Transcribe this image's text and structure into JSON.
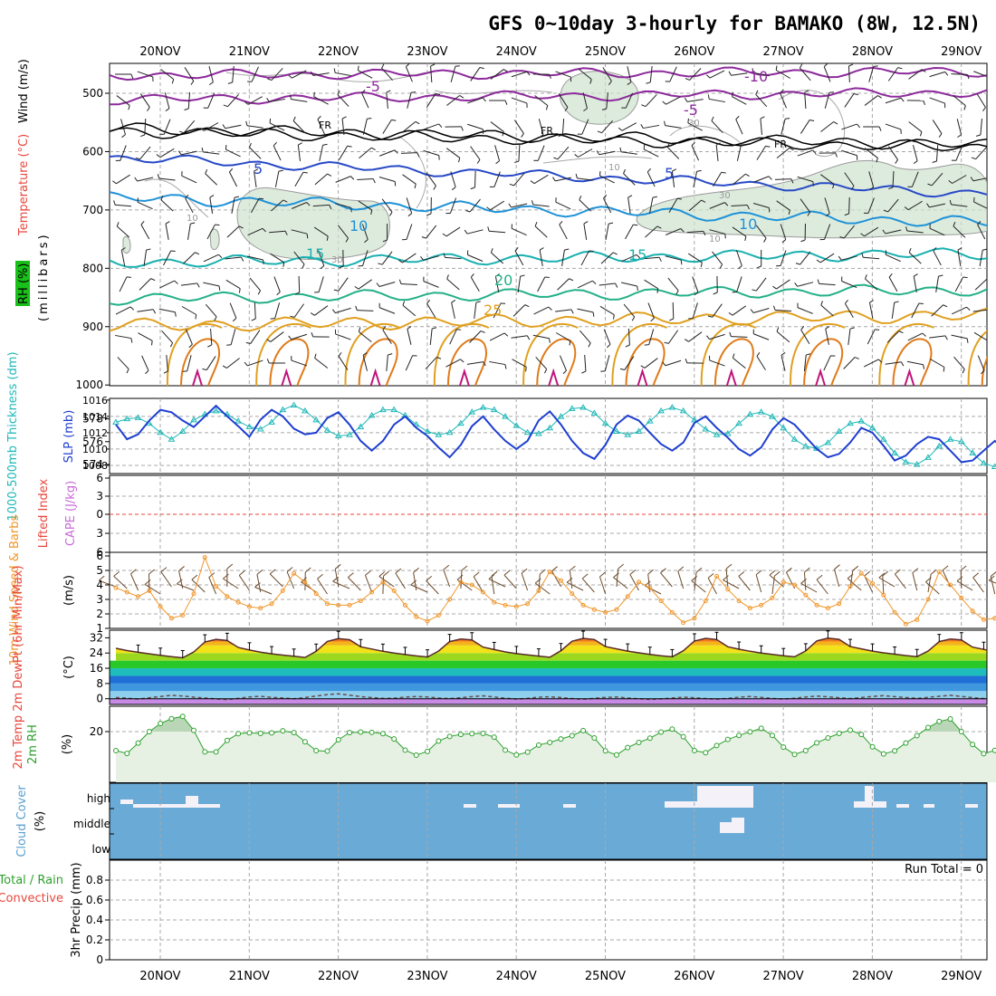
{
  "title": "GFS 0~10day 3-hourly for BAMAKO (8W, 12.5N)",
  "dates": [
    "20NOV",
    "21NOV",
    "22NOV",
    "23NOV",
    "24NOV",
    "25NOV",
    "26NOV",
    "27NOV",
    "28NOV",
    "29NOV"
  ],
  "colors": {
    "temp_axis": "#e8463c",
    "wind_axis": "#000000",
    "rh": "#19a319",
    "thick": "#20b8b8",
    "slp": "#1f3fd0",
    "cape": "#c86bd8",
    "lifted": "#e8463c",
    "wind10": "#f0962a",
    "rh2m": "#2ca02c",
    "cloud": "#6aaad6",
    "precip_total": "#2ca02c",
    "precip_conv": "#e8463c"
  },
  "panels": {
    "upper": {
      "ylabel_rh": "RH (%)",
      "ylabel_temp": "Temperature (°C)",
      "ylabel_wind": "Wind (m/s)",
      "ylabel_mb": "(millibars)",
      "yticks": [
        "500",
        "600",
        "700",
        "800",
        "900",
        "1000"
      ],
      "labels": {
        "fr": "FR",
        "m10": "-10",
        "m5": "-5",
        "p5": "5",
        "p10": "10",
        "p15": "15",
        "p20": "20",
        "p25": "25",
        "rh30": "30",
        "rh10": "10"
      }
    },
    "thick": {
      "ylabel_left": "1000-500mb Thickness (dm)",
      "ylabel_right": "SLP (mb)",
      "left_ticks": [
        "578",
        "576",
        "574"
      ],
      "right_ticks": [
        "1016",
        "1014",
        "1012",
        "1010",
        "1008"
      ]
    },
    "cape": {
      "ylabel_left": "Lifted Index",
      "ylabel_right": "CAPE (J/kg)",
      "ticks": [
        "6",
        "3",
        "0",
        "3",
        "6"
      ]
    },
    "wind10": {
      "ylabel": "10m Wind Speed & Barbs",
      "unit": "(m/s)",
      "ticks": [
        "6",
        "5",
        "4",
        "3",
        "2",
        "1"
      ]
    },
    "temp2m": {
      "ylabel": "2m Temp 2m DewPt (6hr Min/Max)",
      "unit": "(°C)",
      "ticks": [
        "32",
        "24",
        "16",
        "8",
        "0"
      ]
    },
    "rh2m": {
      "ylabel": "2m RH",
      "unit": "(%)",
      "ticks": [
        "20"
      ]
    },
    "cloud": {
      "ylabel": "Cloud Cover",
      "unit": "(%)",
      "levels": [
        "high",
        "middle",
        "low"
      ]
    },
    "precip": {
      "ylabel_total": "Total / Rain",
      "ylabel_conv": "Convective",
      "ylabel": "3hr Precip (mm)",
      "ticks": [
        "0.8",
        "0.6",
        "0.4",
        "0.2",
        "0"
      ],
      "run_total": "Run Total = 0"
    }
  },
  "chart_data": [
    {
      "type": "line",
      "name": "slp",
      "ylabel": "SLP (mb)",
      "ylim": [
        1007,
        1016
      ],
      "x_step_hours": 3,
      "values": [
        1013.0,
        1011.2,
        1011.8,
        1013.5,
        1014.8,
        1014.5,
        1013.5,
        1012.7,
        1014.0,
        1015.3,
        1014.0,
        1012.8,
        1011.5,
        1013.6,
        1014.8,
        1014.0,
        1012.5,
        1011.8,
        1012.0,
        1013.8,
        1014.5,
        1013.0,
        1011.0,
        1009.8,
        1011.0,
        1013.0,
        1014.0,
        1012.6,
        1011.6,
        1010.2,
        1009.0,
        1010.5,
        1012.8,
        1014.0,
        1012.4,
        1011.0,
        1010.0,
        1011.0,
        1013.5,
        1014.6,
        1013.0,
        1011.0,
        1009.5,
        1008.8,
        1010.5,
        1013.0,
        1014.1,
        1013.5,
        1012.0,
        1010.6,
        1009.8,
        1010.8,
        1013.2,
        1014.0,
        1012.6,
        1011.4,
        1010.0,
        1009.2,
        1010.2,
        1012.4,
        1013.8,
        1013.0,
        1011.5,
        1010.0,
        1009.0,
        1009.4,
        1010.8,
        1012.6,
        1012.0,
        1010.4,
        1008.6,
        1009.2,
        1010.6,
        1011.5,
        1011.2,
        1009.8,
        1008.4,
        1008.6,
        1009.8,
        1011.0,
        1009.8,
        1008.0,
        1008.8,
        1010.0,
        1011.2,
        1011.6,
        1010.6,
        1009.5,
        1009.2,
        1010.8,
        1012.0,
        1011.6,
        1010.2,
        1008.9,
        1010.6,
        1012.8,
        1013.4,
        1013.0,
        1014.0
      ]
    },
    {
      "type": "line",
      "name": "thickness",
      "ylabel": "1000-500mb Thickness (dm)",
      "values": [
        577.7,
        578.0,
        578.1,
        577.6,
        576.8,
        576.2,
        576.9,
        577.9,
        578.4,
        578.7,
        578.4,
        577.8,
        577.3,
        577.1,
        577.7,
        578.8,
        579.2,
        578.7,
        577.9,
        577.0,
        576.5,
        576.6,
        577.3,
        578.3,
        578.8,
        578.8,
        578.3,
        577.5,
        576.9,
        576.6,
        576.8,
        577.6,
        578.6,
        579.0,
        578.8,
        578.2,
        577.4,
        576.8,
        576.7,
        577.2,
        578.2,
        578.9,
        579.0,
        578.5,
        577.6,
        576.9,
        576.6,
        576.9,
        577.8,
        578.7,
        579.0,
        578.7,
        577.9,
        577.1,
        576.6,
        576.7,
        577.6,
        578.4,
        578.6,
        578.2,
        577.2,
        576.2,
        575.6,
        575.4,
        575.9,
        576.9,
        577.6,
        577.8,
        577.2,
        576.2,
        575.0,
        574.2,
        574.0,
        574.6,
        575.6,
        576.2,
        576.0,
        575.0,
        574.1,
        573.8,
        574.4,
        575.4,
        576.0,
        575.6,
        574.9,
        574.0,
        573.8,
        574.4,
        575.3,
        575.8,
        575.5,
        574.8,
        574.2,
        574.0,
        574.3,
        574.8,
        574.9,
        574.5,
        574.2
      ]
    },
    {
      "type": "line",
      "name": "wind10",
      "ylabel": "10m Wind Speed (m/s)",
      "values": [
        3.8,
        3.5,
        3.2,
        3.6,
        2.5,
        1.7,
        1.9,
        3.4,
        5.9,
        3.9,
        3.2,
        2.8,
        2.5,
        2.4,
        2.7,
        3.6,
        4.8,
        4.2,
        3.4,
        2.7,
        2.6,
        2.6,
        2.9,
        3.5,
        4.2,
        3.6,
        2.6,
        1.8,
        1.5,
        1.9,
        3.0,
        4.2,
        4.0,
        3.5,
        2.8,
        2.6,
        2.5,
        2.7,
        3.6,
        4.9,
        4.3,
        3.4,
        2.6,
        2.3,
        2.1,
        2.3,
        3.2,
        4.2,
        3.8,
        2.9,
        2.1,
        1.4,
        1.7,
        2.9,
        4.6,
        3.7,
        2.9,
        2.4,
        2.6,
        3.1,
        4.2,
        4.0,
        3.3,
        2.6,
        2.4,
        2.7,
        3.9,
        4.8,
        4.1,
        3.3,
        2.1,
        1.3,
        1.6,
        3.0,
        4.9,
        4.0,
        3.1,
        2.2,
        1.6,
        1.7,
        2.6,
        4.1,
        4.2,
        3.5,
        2.5,
        1.6,
        1.6,
        2.4,
        3.9,
        5.1,
        4.1,
        3.2,
        2.7,
        2.8,
        3.1,
        3.3,
        3.5,
        3.2,
        2.0
      ]
    },
    {
      "type": "line",
      "name": "temp2m",
      "ylabel": "2m Temp (°C)",
      "ylim": [
        -3,
        36
      ],
      "values": [
        26.5,
        25.3,
        24.4,
        23.6,
        22.8,
        22.1,
        21.5,
        24.6,
        29.8,
        31.2,
        30.6,
        26.9,
        25.6,
        24.5,
        23.6,
        22.9,
        22.3,
        21.7,
        24.9,
        30.1,
        31.6,
        31.0,
        27.3,
        26.1,
        24.9,
        24.0,
        23.2,
        22.5,
        21.9,
        25.0,
        30.0,
        31.4,
        30.9,
        27.1,
        25.8,
        24.6,
        23.7,
        23.0,
        22.4,
        21.8,
        25.2,
        30.2,
        31.7,
        31.1,
        27.4,
        26.2,
        25.0,
        24.1,
        23.3,
        22.6,
        22.0,
        25.2,
        30.3,
        31.7,
        31.1,
        27.3,
        26.0,
        24.9,
        24.0,
        23.3,
        22.6,
        22.0,
        25.1,
        30.4,
        31.8,
        31.2,
        27.4,
        26.2,
        25.0,
        24.1,
        23.4,
        22.7,
        22.1,
        25.0,
        30.0,
        31.4,
        30.9,
        27.1,
        25.9,
        24.7,
        23.8,
        23.0,
        22.4,
        21.8,
        25.0,
        30.1,
        31.5,
        31.0,
        27.3,
        26.0,
        24.8,
        23.9,
        23.2,
        22.5,
        21.9,
        21.5,
        21.0,
        20.6,
        20.3
      ]
    },
    {
      "type": "line",
      "name": "dewpt2m",
      "ylabel": "2m DewPt (°C)",
      "values": [
        0.6,
        0.3,
        -0.2,
        0.5,
        1.2,
        1.8,
        1.4,
        0.8,
        0.4,
        -0.1,
        -0.5,
        0.2,
        0.9,
        1.3,
        0.7,
        0.4,
        0.0,
        0.6,
        1.4,
        2.2,
        2.6,
        1.9,
        1.1,
        0.6,
        0.2,
        0.3,
        0.8,
        1.2,
        0.9,
        0.4,
        0.1,
        0.5,
        1.1,
        1.5,
        0.9,
        0.3,
        -0.2,
        0.2,
        0.8,
        1.0,
        0.6,
        0.1,
        -0.3,
        0.2,
        0.7,
        0.9,
        0.4,
        0.0,
        -0.4,
        -0.1,
        0.4,
        0.8,
        0.5,
        0.1,
        -0.3,
        0.2,
        0.8,
        1.2,
        0.7,
        0.2,
        -0.2,
        0.3,
        0.9,
        1.4,
        1.0,
        0.5,
        0.1,
        0.6,
        1.2,
        1.6,
        1.1,
        0.6,
        0.2,
        0.7,
        1.3,
        1.8,
        1.2,
        0.6,
        0.1,
        0.5,
        1.1,
        1.7,
        1.3,
        0.8,
        0.3,
        0.8,
        1.5,
        2.0,
        1.4,
        0.8,
        0.3,
        0.6,
        1.2,
        1.8,
        1.3,
        0.8,
        0.4,
        0.9,
        1.2
      ]
    },
    {
      "type": "area",
      "name": "rh2m",
      "ylabel": "2m RH (%)",
      "ylim": [
        0,
        30
      ],
      "values": [
        12.5,
        11.4,
        15.5,
        20.0,
        23.2,
        25.1,
        26.0,
        20.5,
        12.0,
        12.0,
        16.5,
        19.2,
        19.5,
        19.3,
        19.5,
        20.3,
        19.6,
        16.0,
        12.5,
        12.3,
        16.8,
        19.6,
        19.8,
        19.7,
        19.2,
        17.1,
        12.7,
        10.7,
        12.2,
        16.3,
        18.1,
        18.9,
        19.2,
        19.3,
        17.8,
        12.7,
        10.8,
        11.9,
        14.7,
        15.7,
        17.1,
        18.4,
        20.4,
        17.5,
        12.4,
        10.8,
        13.7,
        15.7,
        17.4,
        19.8,
        21.0,
        18.0,
        12.5,
        11.7,
        14.5,
        16.9,
        18.5,
        19.9,
        21.3,
        18.5,
        13.9,
        11.0,
        12.5,
        15.6,
        17.5,
        19.3,
        20.6,
        18.9,
        14.0,
        11.2,
        12.4,
        15.5,
        18.4,
        21.6,
        24.0,
        25.0,
        20.0,
        14.9,
        11.3,
        12.6,
        15.8,
        17.3,
        19.3,
        21.1,
        18.4,
        14.0,
        12.1,
        14.7,
        16.2,
        17.6,
        19.9,
        21.6,
        19.1,
        14.3,
        14.6,
        18.4,
        21.0,
        22.8,
        23.7
      ]
    },
    {
      "type": "bar",
      "name": "precip",
      "ylabel": "3hr Precip (mm)",
      "ylim": [
        0,
        1
      ],
      "values": [],
      "run_total": 0
    }
  ]
}
